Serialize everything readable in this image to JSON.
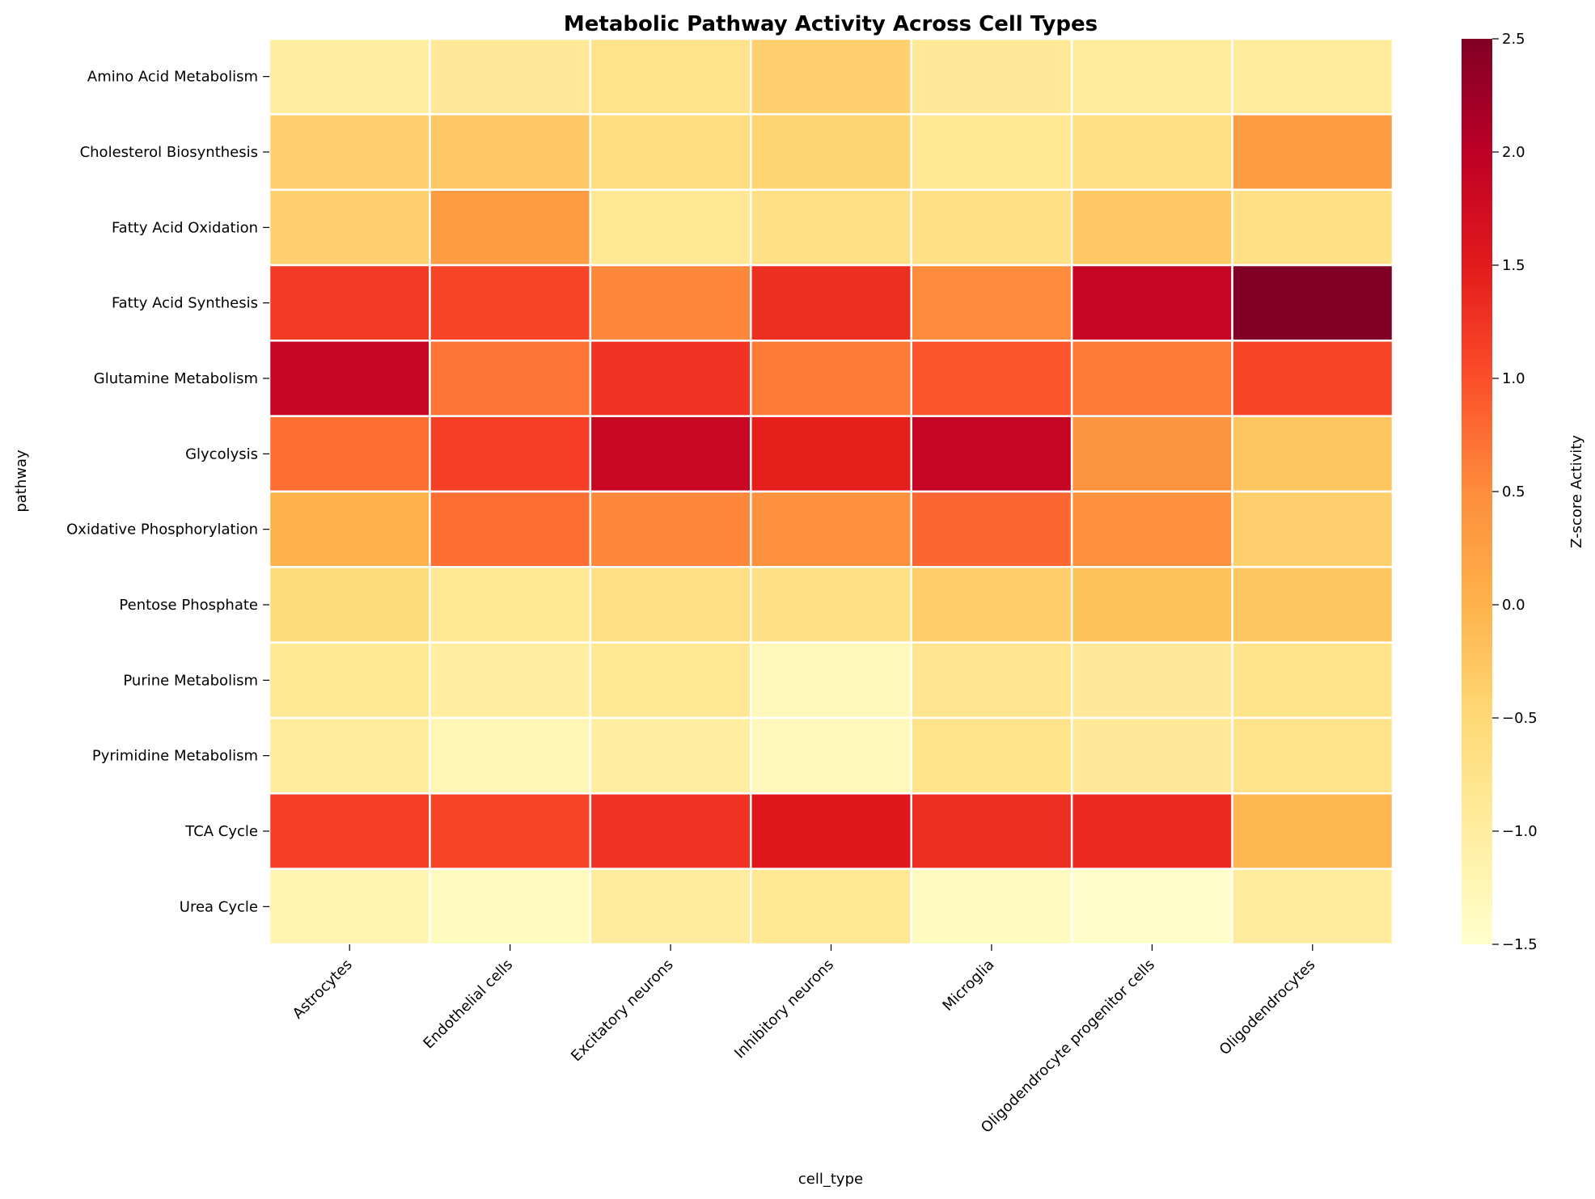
{
  "chart_data": {
    "type": "heatmap",
    "title": "Metabolic Pathway Activity Across Cell Types",
    "xlabel": "cell_type",
    "ylabel": "pathway",
    "x_categories": [
      "Astrocytes",
      "Endothelial cells",
      "Excitatory neurons",
      "Inhibitory neurons",
      "Microglia",
      "Oligodendrocyte progenitor cells",
      "Oligodendrocytes"
    ],
    "y_categories": [
      "Amino Acid Metabolism",
      "Cholesterol Biosynthesis",
      "Fatty Acid Oxidation",
      "Fatty Acid Synthesis",
      "Glutamine Metabolism",
      "Glycolysis",
      "Oxidative Phosphorylation",
      "Pentose Phosphate",
      "Purine Metabolism",
      "Pyrimidine Metabolism",
      "TCA Cycle",
      "Urea Cycle"
    ],
    "values": [
      [
        -1.0,
        -0.9,
        -0.75,
        -0.4,
        -0.9,
        -0.95,
        -0.95
      ],
      [
        -0.4,
        -0.3,
        -0.6,
        -0.45,
        -0.85,
        -0.65,
        0.3
      ],
      [
        -0.4,
        0.3,
        -0.85,
        -0.7,
        -0.7,
        -0.3,
        -0.7
      ],
      [
        1.2,
        1.1,
        0.55,
        1.3,
        0.5,
        1.9,
        2.5
      ],
      [
        1.9,
        0.7,
        1.25,
        0.65,
        0.95,
        0.65,
        1.1
      ],
      [
        0.75,
        1.15,
        1.85,
        1.45,
        1.9,
        0.4,
        -0.25
      ],
      [
        0.0,
        0.75,
        0.55,
        0.45,
        0.8,
        0.45,
        -0.4
      ],
      [
        -0.55,
        -0.85,
        -0.65,
        -0.7,
        -0.35,
        -0.2,
        -0.25
      ],
      [
        -0.85,
        -1.0,
        -0.85,
        -1.3,
        -0.8,
        -0.9,
        -0.75
      ],
      [
        -0.95,
        -1.25,
        -1.0,
        -1.3,
        -0.75,
        -0.9,
        -0.75
      ],
      [
        1.15,
        1.1,
        1.25,
        1.55,
        1.3,
        1.35,
        -0.05
      ],
      [
        -1.2,
        -1.35,
        -0.95,
        -0.85,
        -1.35,
        -1.45,
        -0.95
      ]
    ],
    "colorbar": {
      "label": "Z-score Activity",
      "min": -1.5,
      "max": 2.5,
      "ticks": [
        -1.5,
        -1.0,
        -0.5,
        0.0,
        0.5,
        1.0,
        1.5,
        2.0,
        2.5
      ],
      "tick_labels": [
        "−1.5",
        "−1.0",
        "−0.5",
        "0.0",
        "0.5",
        "1.0",
        "1.5",
        "2.0",
        "2.5"
      ]
    },
    "colormap": "YlOrRd",
    "cell_border_color": "#ffffff"
  }
}
